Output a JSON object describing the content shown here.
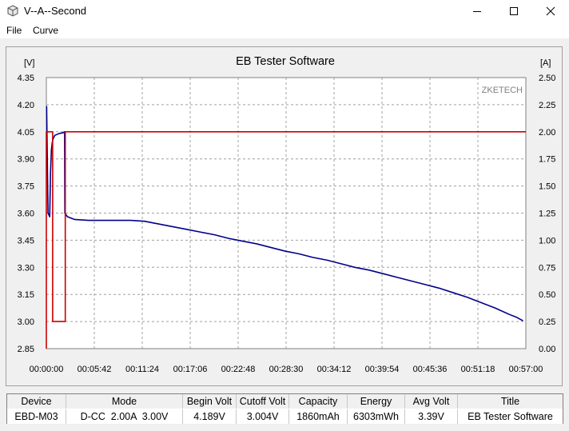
{
  "window": {
    "title": "V--A--Second"
  },
  "menu": {
    "items": [
      "File",
      "Curve"
    ]
  },
  "chart_data": {
    "type": "line",
    "title": "EB Tester Software",
    "watermark": "ZKETECH",
    "left_axis": {
      "unit": "[V]",
      "min": 2.85,
      "max": 4.35,
      "ticks": [
        "4.35",
        "4.20",
        "4.05",
        "3.90",
        "3.75",
        "3.60",
        "3.45",
        "3.30",
        "3.15",
        "3.00",
        "2.85"
      ]
    },
    "right_axis": {
      "unit": "[A]",
      "min": 0,
      "max": 2.5,
      "ticks": [
        "2.50",
        "2.25",
        "2.00",
        "1.75",
        "1.50",
        "1.25",
        "1.00",
        "0.75",
        "0.50",
        "0.25",
        "0.00"
      ]
    },
    "x_axis": {
      "min_seconds": 0,
      "max_seconds": 3420,
      "ticks": [
        "00:00:00",
        "00:05:42",
        "00:11:24",
        "00:17:06",
        "00:22:48",
        "00:28:30",
        "00:34:12",
        "00:39:54",
        "00:45:36",
        "00:51:18",
        "00:57:00"
      ]
    },
    "grid": true,
    "series": [
      {
        "axis": "left",
        "color": "#00008b",
        "x": [
          0,
          2,
          12,
          18,
          24,
          30,
          36,
          42,
          48,
          60,
          90,
          120,
          130,
          132,
          150,
          200,
          300,
          400,
          500,
          600,
          700,
          800,
          900,
          1000,
          1100,
          1200,
          1300,
          1400,
          1500,
          1600,
          1700,
          1800,
          1900,
          2000,
          2100,
          2200,
          2300,
          2400,
          2500,
          2600,
          2700,
          2800,
          2900,
          3000,
          3100,
          3200,
          3300,
          3350,
          3400
        ],
        "y": [
          4.19,
          4.19,
          3.6,
          3.59,
          3.58,
          3.83,
          3.95,
          3.99,
          4.01,
          4.03,
          4.04,
          4.045,
          4.05,
          3.6,
          3.58,
          3.565,
          3.56,
          3.56,
          3.56,
          3.56,
          3.555,
          3.54,
          3.525,
          3.51,
          3.495,
          3.48,
          3.46,
          3.445,
          3.43,
          3.41,
          3.39,
          3.375,
          3.355,
          3.34,
          3.32,
          3.3,
          3.285,
          3.265,
          3.245,
          3.225,
          3.205,
          3.185,
          3.16,
          3.135,
          3.105,
          3.075,
          3.04,
          3.025,
          3.004
        ]
      },
      {
        "axis": "right",
        "color": "#cc0000",
        "x": [
          0,
          0,
          5,
          5,
          45,
          45,
          50,
          50,
          135,
          135,
          3420
        ],
        "y": [
          0.0,
          2.0,
          2.0,
          2.0,
          2.0,
          0.25,
          0.25,
          0.25,
          0.25,
          2.0,
          2.0
        ]
      }
    ]
  },
  "table": {
    "headers": [
      "Device",
      "Mode",
      "Begin Volt",
      "Cutoff Volt",
      "Capacity",
      "Energy",
      "Avg Volt",
      "Title"
    ],
    "values": [
      "EBD-M03",
      "D-CC  2.00A  3.00V",
      "4.189V",
      "3.004V",
      "1860mAh",
      "6303mWh",
      "3.39V",
      "EB Tester Software"
    ]
  }
}
